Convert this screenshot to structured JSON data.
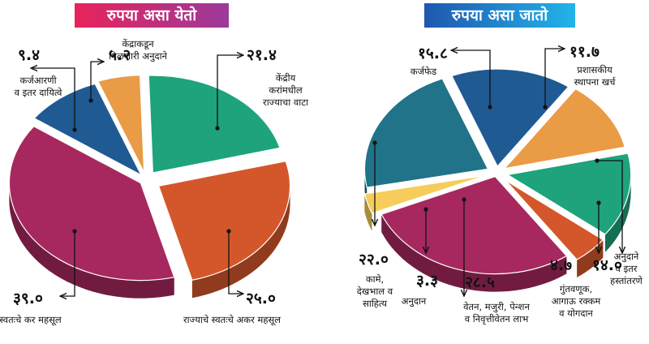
{
  "chart_data": [
    {
      "type": "pie",
      "title": "रुपया असा येतो",
      "colors": [
        "#1f5a92",
        "#e99b46",
        "#1ea37c",
        "#d4572b",
        "#a7285f"
      ],
      "slices": [
        {
          "label": "कर्जआरणी व इतर दायित्वे",
          "value": 9.4,
          "value_text": "९.४",
          "lines": [
            "कर्जआरणी",
            "व इतर दायित्वे"
          ]
        },
        {
          "label": "केंद्राकडून मिळणारी अनुदाने",
          "value": 5.2,
          "value_text": "५.२",
          "lines": [
            "केंद्राकडून",
            "मिळणारी अनुदाने"
          ]
        },
        {
          "label": "केंद्रीय करांमधील राज्याचा वाटा",
          "value": 21.4,
          "value_text": "२१.४",
          "lines": [
            "केंद्रीय",
            "करांमधील",
            "राज्याचा वाटा"
          ]
        },
        {
          "label": "राज्याचे स्वतःचे अकर महसूल",
          "value": 25.0,
          "value_text": "२५.०",
          "lines": [
            "राज्याचे स्वतःचे अकर महसूल"
          ]
        },
        {
          "label": "राज्याचे स्वतःचे कर महसूल",
          "value": 39.0,
          "value_text": "३९.०",
          "lines": [
            "राज्याचे स्वतःचे कर महसूल"
          ]
        }
      ]
    },
    {
      "type": "pie",
      "title": "रुपया असा जातो",
      "colors": [
        "#1f5a92",
        "#e99b46",
        "#1ea37c",
        "#d4572b",
        "#a7285f",
        "#f6cc5b",
        "#207389"
      ],
      "slices": [
        {
          "label": "कर्जफेड",
          "value": 15.8,
          "value_text": "१५.८",
          "lines": [
            "कर्जफेड"
          ]
        },
        {
          "label": "प्रशासकीय स्थापना खर्च",
          "value": 11.7,
          "value_text": "११.७",
          "lines": [
            "प्रशासकीय",
            "स्थापना खर्च"
          ]
        },
        {
          "label": "अनुदाने व इतर हस्तांतरणे",
          "value": 14.0,
          "value_text": "१४.०",
          "lines": [
            "अनुदाने",
            "व इतर",
            "हस्तांतरणे"
          ]
        },
        {
          "label": "गुंतवणूक, आगाऊ रक्कम व योगदान",
          "value": 4.7,
          "value_text": "४.७",
          "lines": [
            "गुंतवणूक,",
            "आगाऊ रक्कम",
            "व योगदान"
          ]
        },
        {
          "label": "वेतन, मजुरी, पेन्शन व निवृत्तीवेतन लाभ",
          "value": 28.5,
          "value_text": "२८.५",
          "lines": [
            "वेतन, मजुरी, पेन्शन",
            "व निवृत्तीवेतन लाभ"
          ]
        },
        {
          "label": "अनुदान",
          "value": 3.3,
          "value_text": "३.३",
          "lines": [
            "अनुदान"
          ]
        },
        {
          "label": "कामे, देखभाल व साहित्य",
          "value": 22.0,
          "value_text": "२२.०",
          "lines": [
            "कामे,",
            "देखभाल व",
            "साहित्य"
          ]
        }
      ]
    }
  ]
}
